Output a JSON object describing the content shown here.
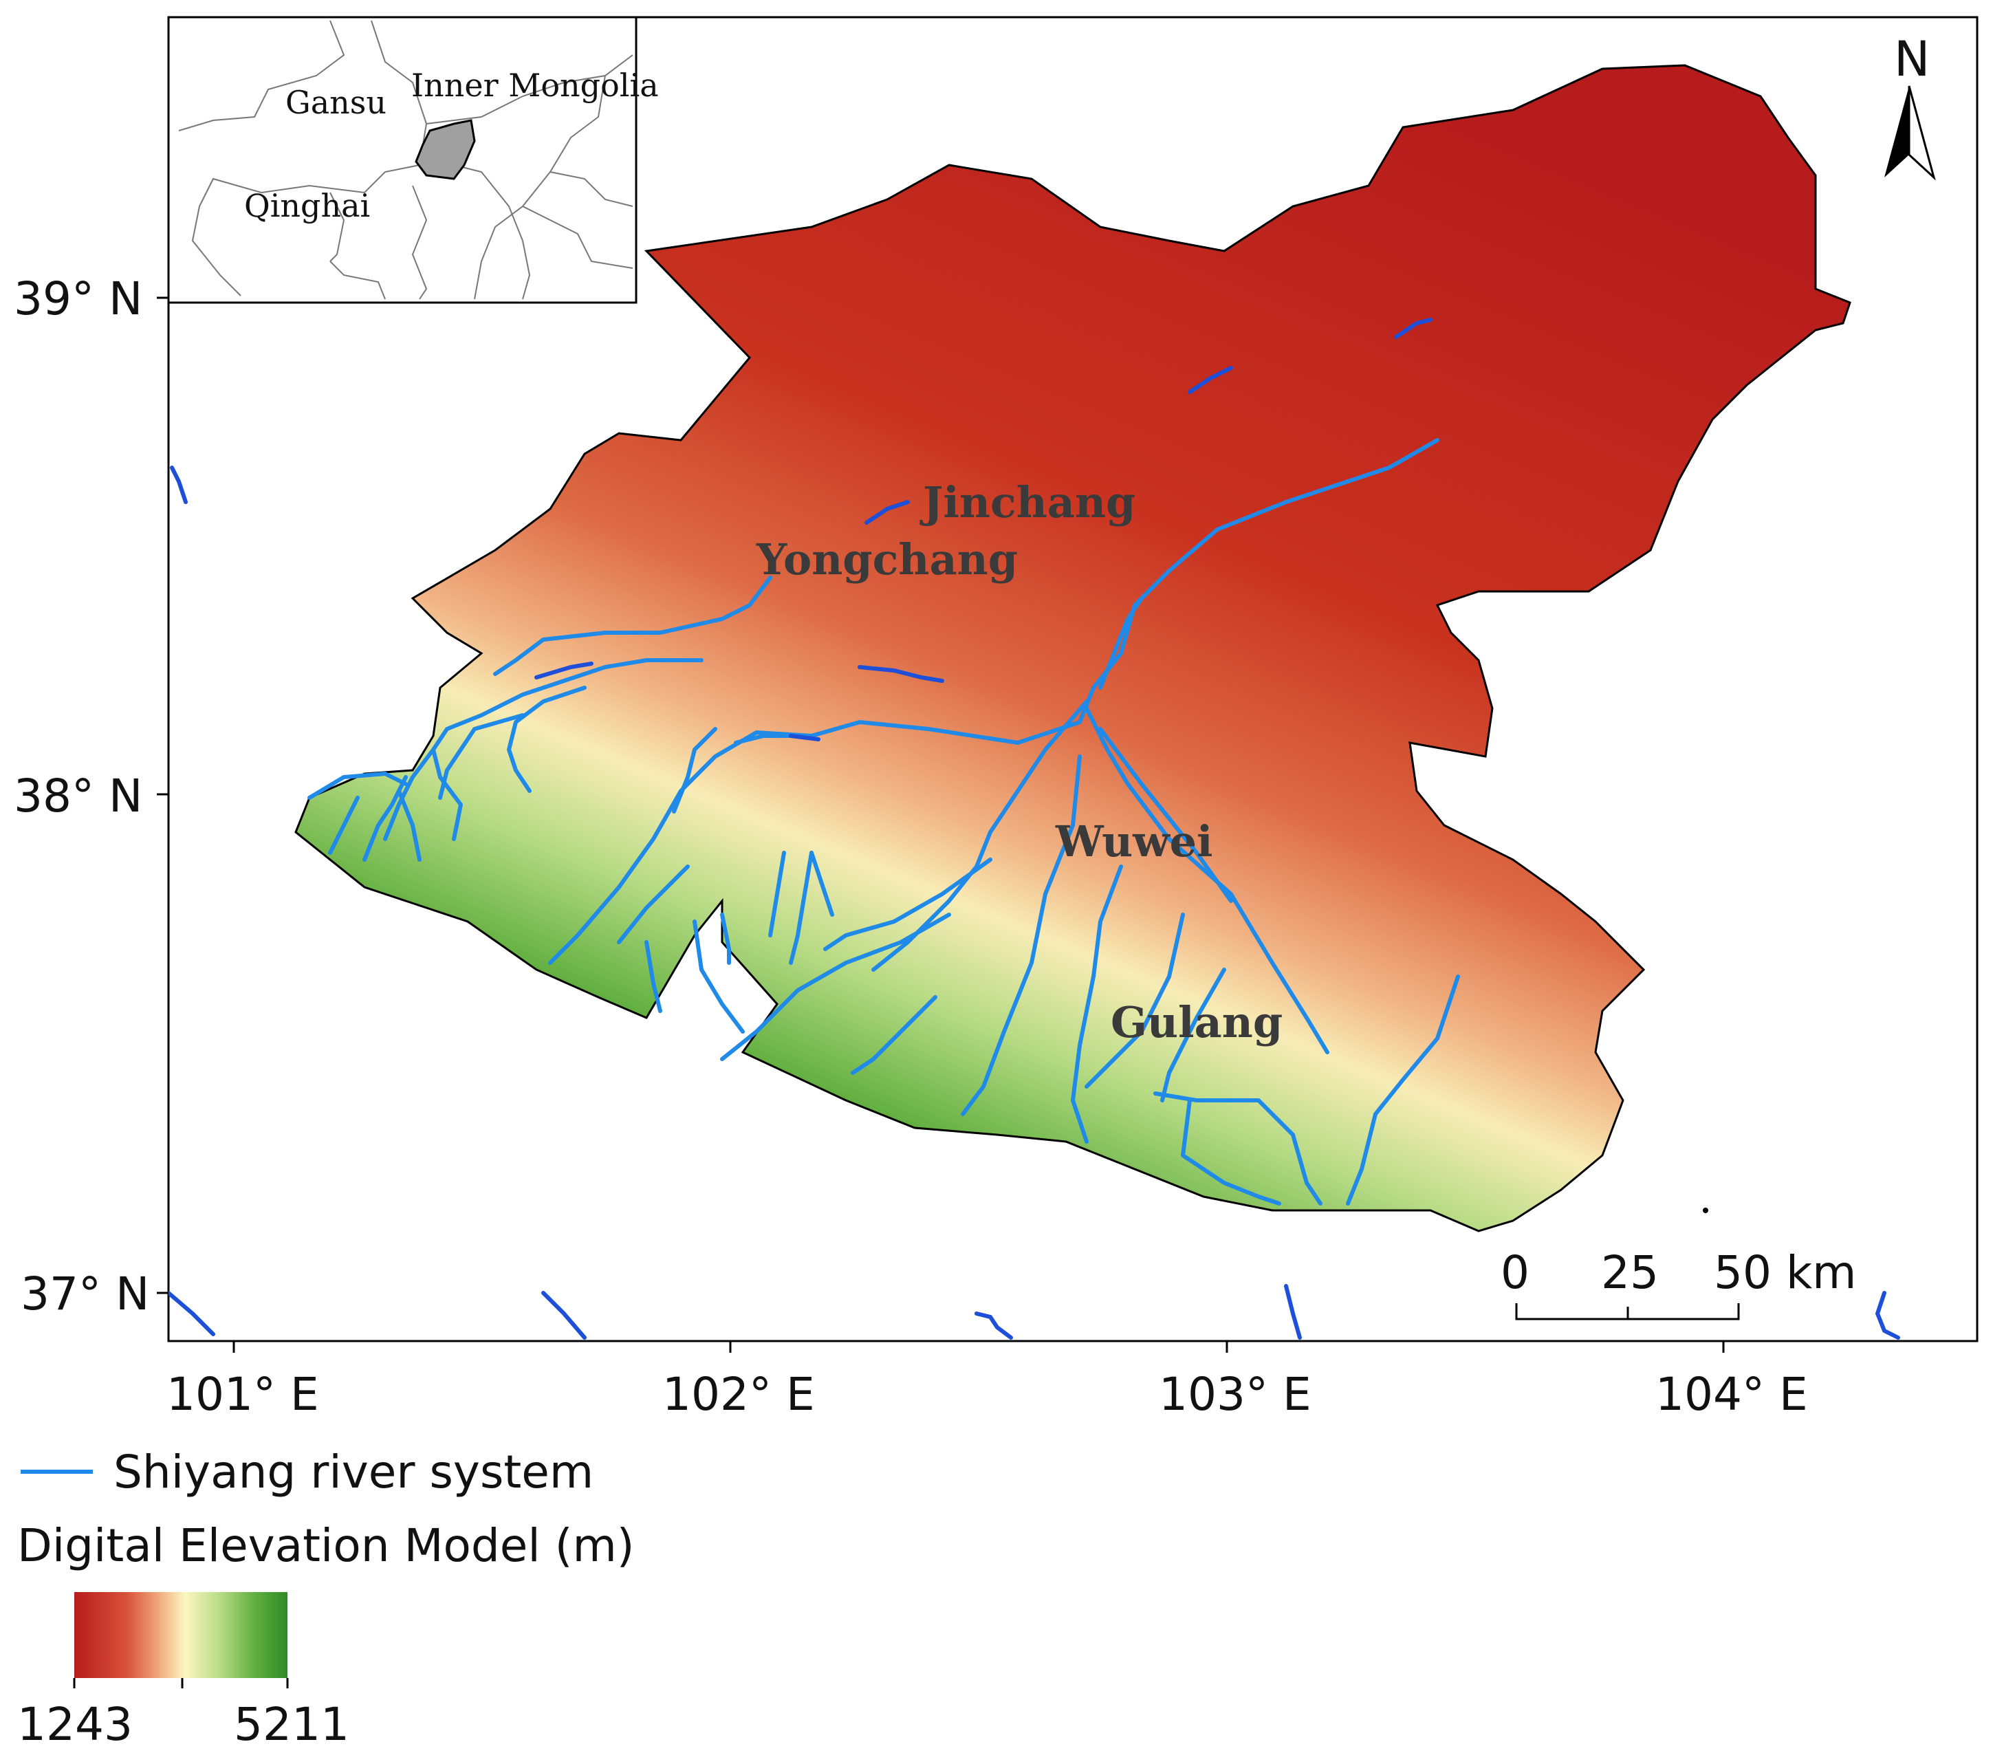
{
  "axes": {
    "lat_labels": [
      "39° N",
      "38° N",
      "37° N"
    ],
    "lon_labels": [
      "101° E",
      "102° E",
      "103° E",
      "104° E"
    ]
  },
  "inset": {
    "labels": {
      "gansu": "Gansu",
      "inner_mongolia": "Inner Mongolia",
      "qinghai": "Qinghai"
    },
    "highlight_color": "#a0a0a0"
  },
  "cities": {
    "jinchang": "Jinchang",
    "yongchang": "Yongchang",
    "wuwei": "Wuwei",
    "gulang": "Gulang"
  },
  "north_arrow": {
    "label": "N"
  },
  "scale_bar": {
    "ticks": [
      "0",
      "25",
      "50 km"
    ]
  },
  "legend": {
    "river_label": "Shiyang river system",
    "river_color": "#1f8ae8",
    "dem_title": "Digital Elevation Model (m)",
    "dem_min": "1243",
    "dem_max": "5211",
    "dem_colors": [
      "#b71c1c",
      "#d9533a",
      "#f2b889",
      "#fbf7c2",
      "#b9dc86",
      "#5fae3e",
      "#2e8b25"
    ]
  }
}
